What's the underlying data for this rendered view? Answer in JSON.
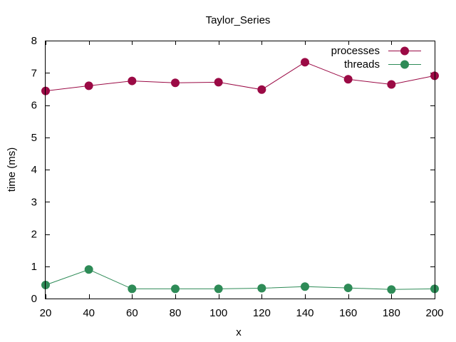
{
  "chart_data": {
    "type": "line",
    "title": "Taylor_Series",
    "xlabel": "x",
    "ylabel": "time (ms)",
    "xlim": [
      20,
      200
    ],
    "ylim": [
      0,
      8
    ],
    "x_ticks": [
      20,
      40,
      60,
      80,
      100,
      120,
      140,
      160,
      180,
      200
    ],
    "y_ticks": [
      0,
      1,
      2,
      3,
      4,
      5,
      6,
      7,
      8
    ],
    "grid": false,
    "legend_position": "top-right",
    "x": [
      20,
      40,
      60,
      80,
      100,
      120,
      140,
      160,
      180,
      200
    ],
    "series": [
      {
        "name": "processes",
        "color": "#9b0a45",
        "marker": "circle",
        "values": [
          6.44,
          6.6,
          6.75,
          6.69,
          6.71,
          6.48,
          7.33,
          6.8,
          6.64,
          6.91
        ]
      },
      {
        "name": "threads",
        "color": "#2e8b57",
        "marker": "circle",
        "values": [
          0.42,
          0.9,
          0.3,
          0.3,
          0.3,
          0.32,
          0.37,
          0.33,
          0.28,
          0.3
        ]
      }
    ]
  }
}
